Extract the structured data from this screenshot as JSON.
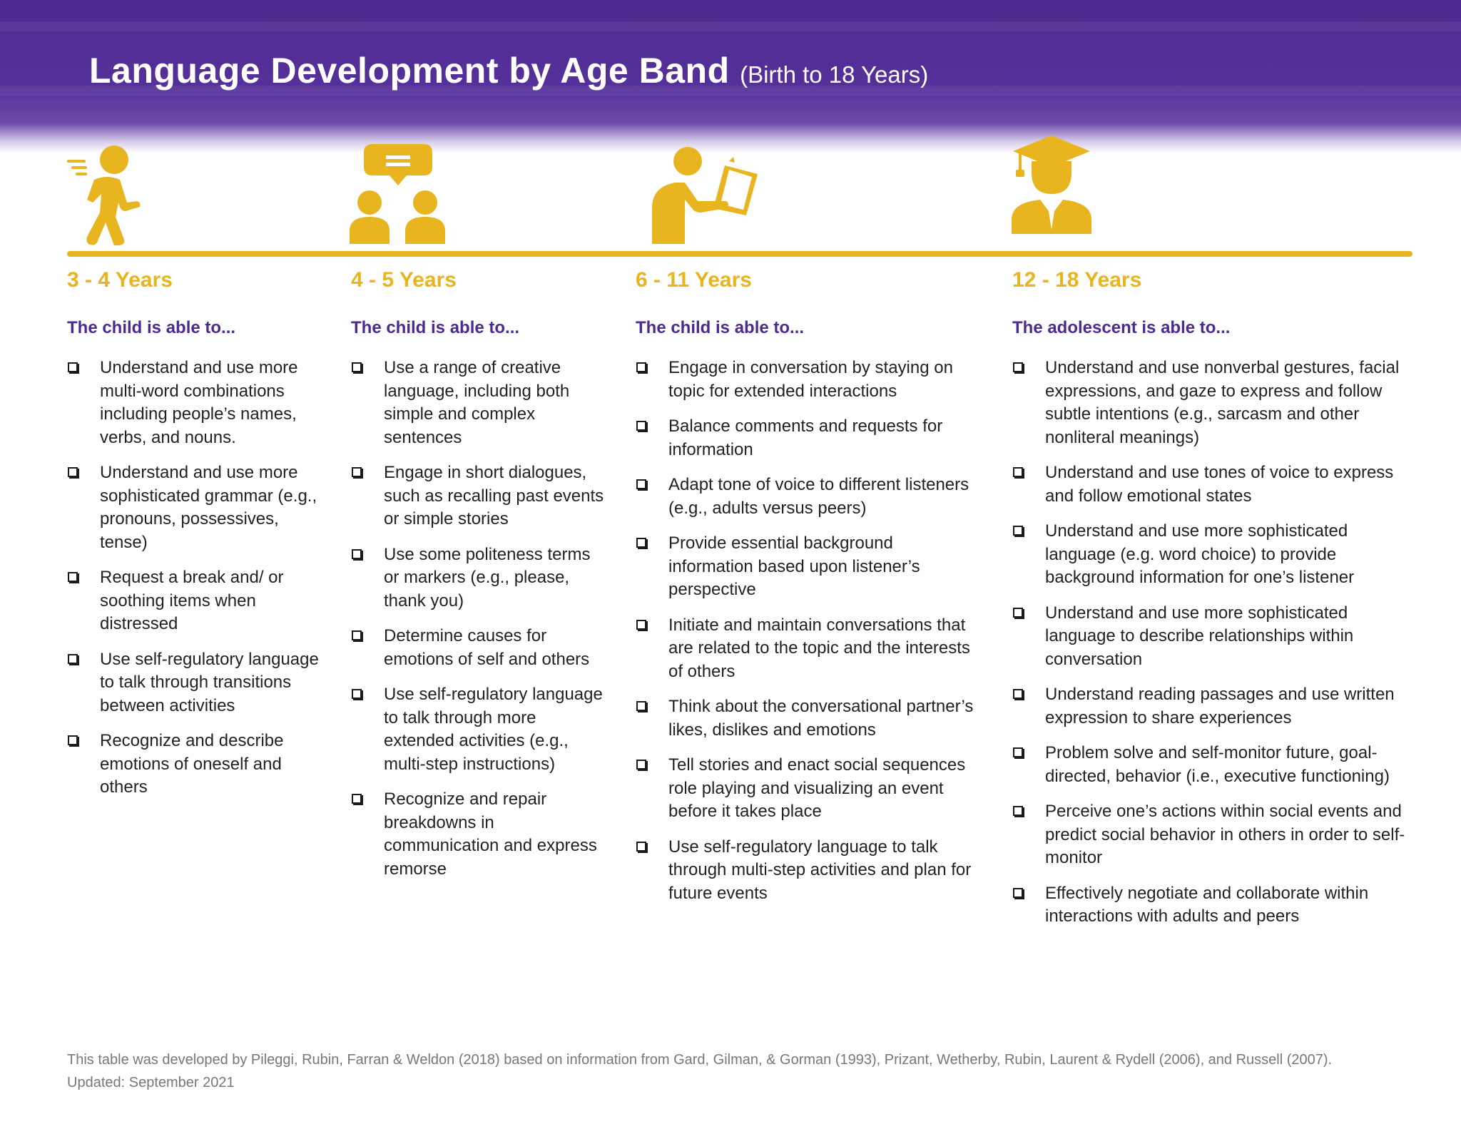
{
  "header": {
    "title": "Language Development by Age Band",
    "subtitle": "(Birth to 18 Years)"
  },
  "colors": {
    "banner": "#55309a",
    "accent": "#e8b41f",
    "lead": "#4b2a91"
  },
  "icons": [
    "walking-child-icon",
    "conversation-icon",
    "reading-icon",
    "graduate-icon"
  ],
  "columns": [
    {
      "age": "3 - 4 Years",
      "lead": "The child is able to...",
      "items": [
        "Understand and use more multi-word combinations including people’s names, verbs, and nouns.",
        "Understand and use more sophisticated grammar (e.g., pronouns, possessives, tense)",
        "Request a break and/ or soothing items when distressed",
        "Use self-regulatory language to talk through transitions between activities",
        "Recognize and describe emotions of oneself and others"
      ]
    },
    {
      "age": "4 - 5 Years",
      "lead": "The child is able to...",
      "items": [
        "Use a range of creative language, including both simple and complex sentences",
        "Engage in short dialogues, such as recalling past events or simple stories",
        "Use some politeness terms or markers (e.g., please, thank you)",
        "Determine causes for emotions of self and others",
        "Use self-regulatory language to talk through more extended activities (e.g., multi-step instructions)",
        "Recognize and repair breakdowns in communication and express remorse"
      ]
    },
    {
      "age": "6 - 11 Years",
      "lead": "The child is able to...",
      "items": [
        "Engage in conversation by staying on topic for extended interactions",
        "Balance comments and requests for information",
        "Adapt tone of voice to different listeners (e.g., adults versus peers)",
        "Provide essential background information based upon listener’s perspective",
        "Initiate and maintain conversations that are related to the topic and the interests of others",
        "Think about the conversational partner’s likes, dislikes and emotions",
        "Tell stories and enact social sequences role playing and visualizing an event before it takes place",
        "Use self-regulatory language to talk through multi-step activities and plan for future events"
      ]
    },
    {
      "age": "12 - 18 Years",
      "lead": "The adolescent is able to...",
      "items": [
        "Understand and use nonverbal gestures, facial expressions, and gaze to express and follow subtle intentions (e.g., sarcasm and other nonliteral meanings)",
        "Understand and use tones of voice to express and follow emotional states",
        "Understand and use more sophisticated language (e.g. word choice) to provide background information for one’s listener",
        "Understand and use more sophisticated language to describe relationships within conversation",
        "Understand reading passages and use written expression to share experiences",
        "Problem solve and self-monitor future, goal-directed, behavior (i.e., executive functioning)",
        "Perceive one’s actions within social events and predict social behavior in others in order to self-monitor",
        "Effectively negotiate and collaborate within interactions with adults and peers"
      ]
    }
  ],
  "footer": "This table was developed by Pileggi, Rubin, Farran & Weldon (2018) based on information from Gard, Gilman, & Gorman (1993), Prizant, Wetherby, Rubin, Laurent & Rydell (2006), and Russell (2007). Updated: September 2021"
}
